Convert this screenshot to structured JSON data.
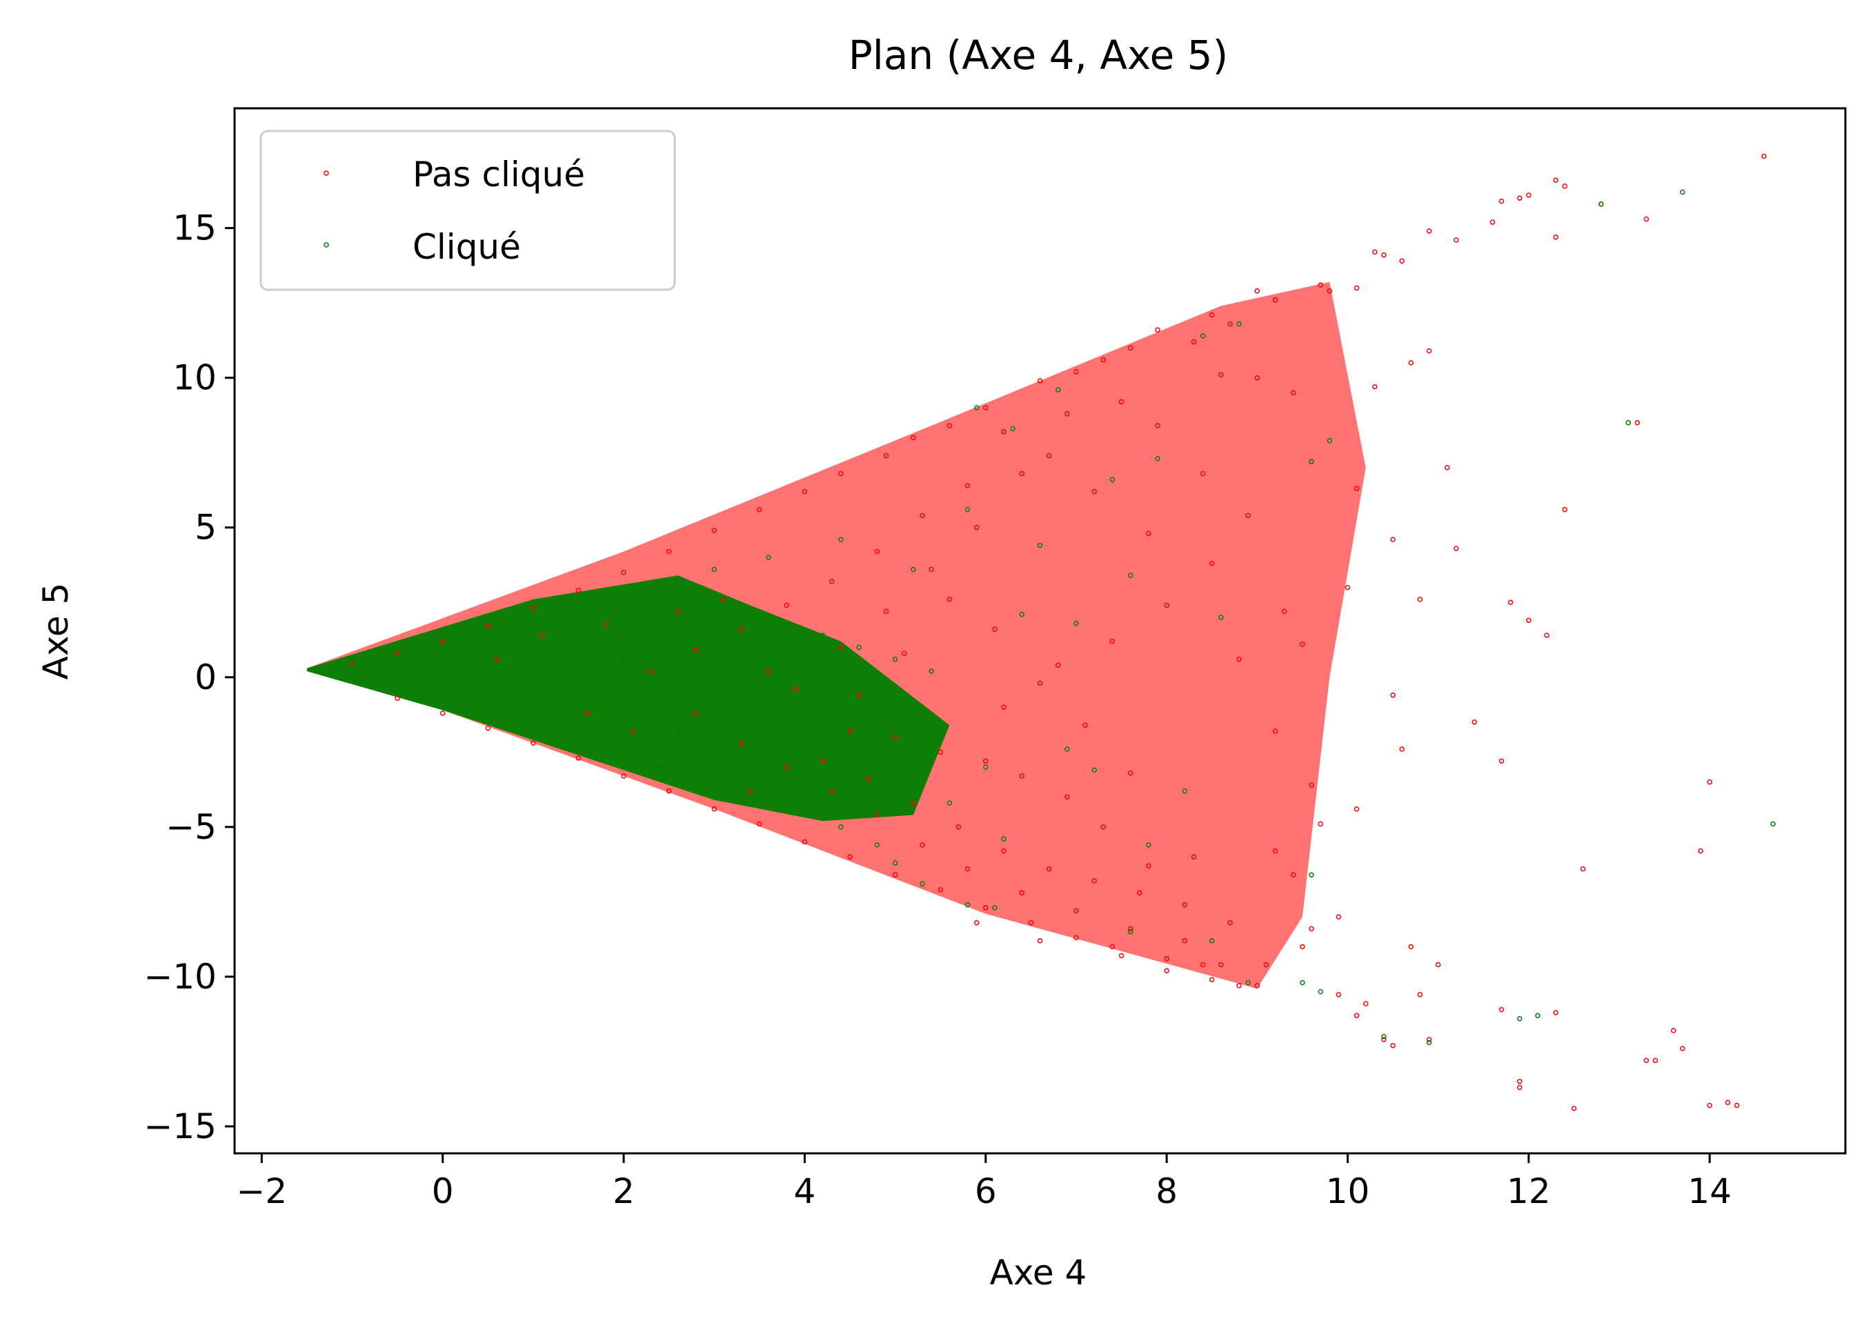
{
  "chart_data": {
    "type": "scatter",
    "title": "Plan (Axe 4, Axe 5)",
    "xlabel": "Axe 4",
    "ylabel": "Axe 5",
    "xlim": [
      -2.3,
      15.5
    ],
    "ylim": [
      -15.9,
      19.0
    ],
    "x_ticks": [
      -2,
      0,
      2,
      4,
      6,
      8,
      10,
      12,
      14
    ],
    "x_tick_labels": [
      "−2",
      "0",
      "2",
      "4",
      "6",
      "8",
      "10",
      "12",
      "14"
    ],
    "y_ticks": [
      -15,
      -10,
      -5,
      0,
      5,
      10,
      15
    ],
    "y_tick_labels": [
      "−15",
      "−10",
      "−5",
      "0",
      "5",
      "10",
      "15"
    ],
    "grid": false,
    "legend": {
      "position": "upper-left"
    },
    "series": [
      {
        "name": "Pas cliqué",
        "color": "#ff0000",
        "points": [
          [
            14.6,
            17.4
          ],
          [
            12.3,
            16.6
          ],
          [
            12.4,
            16.4
          ],
          [
            11.9,
            16.0
          ],
          [
            12.0,
            16.1
          ],
          [
            11.7,
            15.9
          ],
          [
            11.6,
            15.2
          ],
          [
            12.8,
            15.8
          ],
          [
            13.3,
            15.3
          ],
          [
            12.3,
            14.7
          ],
          [
            11.2,
            14.6
          ],
          [
            10.3,
            14.2
          ],
          [
            10.4,
            14.1
          ],
          [
            10.6,
            13.9
          ],
          [
            10.9,
            14.9
          ],
          [
            9.7,
            13.1
          ],
          [
            9.8,
            12.9
          ],
          [
            10.1,
            13.0
          ],
          [
            9.2,
            12.6
          ],
          [
            8.7,
            11.8
          ],
          [
            8.5,
            12.1
          ],
          [
            9.0,
            12.9
          ],
          [
            10.3,
            9.7
          ],
          [
            10.7,
            10.5
          ],
          [
            10.9,
            10.9
          ],
          [
            11.1,
            7.0
          ],
          [
            12.4,
            5.6
          ],
          [
            13.2,
            8.5
          ],
          [
            11.2,
            4.3
          ],
          [
            10.5,
            4.6
          ],
          [
            11.8,
            2.5
          ],
          [
            12.0,
            1.9
          ],
          [
            12.2,
            1.4
          ],
          [
            11.7,
            -2.8
          ],
          [
            12.6,
            -6.4
          ],
          [
            13.9,
            -5.8
          ],
          [
            14.0,
            -3.5
          ],
          [
            13.6,
            -11.8
          ],
          [
            13.7,
            -12.4
          ],
          [
            13.3,
            -12.8
          ],
          [
            13.4,
            -12.8
          ],
          [
            11.9,
            -13.5
          ],
          [
            11.9,
            -13.7
          ],
          [
            12.5,
            -14.4
          ],
          [
            14.0,
            -14.3
          ],
          [
            14.3,
            -14.3
          ],
          [
            14.2,
            -14.2
          ],
          [
            12.3,
            -11.2
          ],
          [
            11.7,
            -11.1
          ],
          [
            10.4,
            -12.1
          ],
          [
            10.5,
            -12.3
          ],
          [
            10.9,
            -12.1
          ],
          [
            10.2,
            -10.9
          ],
          [
            10.1,
            -11.3
          ],
          [
            9.9,
            -10.6
          ],
          [
            9.5,
            -9.0
          ],
          [
            9.9,
            -8.0
          ],
          [
            10.7,
            -9.0
          ],
          [
            11.0,
            -9.6
          ],
          [
            10.8,
            -10.6
          ],
          [
            9.4,
            -6.6
          ],
          [
            9.7,
            -4.9
          ],
          [
            10.1,
            -4.4
          ],
          [
            10.6,
            -2.4
          ],
          [
            11.4,
            -1.5
          ],
          [
            10.5,
            -0.6
          ],
          [
            9.5,
            1.1
          ],
          [
            10.0,
            3.0
          ],
          [
            10.8,
            2.6
          ],
          [
            10.1,
            6.3
          ],
          [
            9.6,
            7.2
          ],
          [
            9.4,
            9.5
          ],
          [
            9.0,
            10.0
          ],
          [
            8.6,
            10.1
          ],
          [
            8.3,
            11.2
          ],
          [
            7.9,
            11.6
          ],
          [
            7.6,
            11.0
          ],
          [
            7.3,
            10.6
          ],
          [
            7.0,
            10.2
          ],
          [
            6.6,
            9.9
          ],
          [
            6.0,
            9.0
          ],
          [
            5.6,
            8.4
          ],
          [
            5.2,
            8.0
          ],
          [
            4.9,
            7.4
          ],
          [
            4.4,
            6.8
          ],
          [
            4.0,
            6.2
          ],
          [
            3.5,
            5.6
          ],
          [
            3.0,
            4.9
          ],
          [
            2.5,
            4.2
          ],
          [
            2.0,
            3.5
          ],
          [
            1.5,
            2.9
          ],
          [
            1.0,
            2.3
          ],
          [
            0.5,
            1.7
          ],
          [
            0.0,
            1.2
          ],
          [
            -0.5,
            0.8
          ],
          [
            -1.0,
            0.5
          ],
          [
            -1.4,
            0.3
          ],
          [
            -0.5,
            -0.7
          ],
          [
            0.0,
            -1.2
          ],
          [
            0.5,
            -1.7
          ],
          [
            1.0,
            -2.2
          ],
          [
            1.5,
            -2.7
          ],
          [
            2.0,
            -3.3
          ],
          [
            2.5,
            -3.8
          ],
          [
            3.0,
            -4.4
          ],
          [
            3.5,
            -4.9
          ],
          [
            4.0,
            -5.5
          ],
          [
            4.5,
            -6.0
          ],
          [
            5.0,
            -6.6
          ],
          [
            5.5,
            -7.1
          ],
          [
            6.0,
            -7.7
          ],
          [
            6.5,
            -8.2
          ],
          [
            7.0,
            -8.7
          ],
          [
            7.5,
            -9.3
          ],
          [
            8.0,
            -9.8
          ],
          [
            8.5,
            -10.1
          ],
          [
            9.0,
            -10.3
          ],
          [
            8.8,
            -10.3
          ],
          [
            8.6,
            -9.6
          ],
          [
            8.2,
            -7.6
          ],
          [
            7.8,
            -6.3
          ],
          [
            7.3,
            -5.0
          ],
          [
            6.9,
            -4.0
          ],
          [
            6.4,
            -3.3
          ],
          [
            6.0,
            -2.8
          ],
          [
            5.5,
            -2.5
          ],
          [
            5.0,
            -2.0
          ],
          [
            4.5,
            -1.8
          ],
          [
            6.2,
            -1.0
          ],
          [
            6.8,
            0.4
          ],
          [
            7.4,
            1.2
          ],
          [
            8.0,
            2.4
          ],
          [
            8.5,
            3.8
          ],
          [
            7.8,
            4.8
          ],
          [
            7.2,
            6.2
          ],
          [
            6.7,
            7.4
          ],
          [
            6.2,
            8.2
          ],
          [
            5.8,
            6.4
          ],
          [
            5.3,
            5.4
          ],
          [
            4.8,
            4.2
          ],
          [
            4.3,
            3.2
          ],
          [
            3.8,
            2.4
          ],
          [
            3.3,
            1.6
          ],
          [
            2.8,
            0.9
          ],
          [
            2.3,
            0.2
          ],
          [
            2.8,
            -1.2
          ],
          [
            3.3,
            -2.2
          ],
          [
            3.8,
            -3.0
          ],
          [
            4.3,
            -3.8
          ],
          [
            4.8,
            -4.6
          ],
          [
            5.3,
            -5.6
          ],
          [
            5.8,
            -6.4
          ],
          [
            6.4,
            -7.2
          ],
          [
            7.0,
            -7.8
          ],
          [
            7.6,
            -8.4
          ],
          [
            8.2,
            -8.8
          ],
          [
            8.7,
            -8.2
          ],
          [
            9.2,
            -5.8
          ],
          [
            9.6,
            -3.6
          ],
          [
            9.2,
            -1.8
          ],
          [
            8.8,
            0.6
          ],
          [
            9.3,
            2.2
          ],
          [
            8.9,
            5.4
          ],
          [
            8.4,
            6.8
          ],
          [
            7.9,
            8.4
          ],
          [
            7.5,
            9.2
          ],
          [
            6.9,
            8.8
          ],
          [
            6.4,
            6.8
          ],
          [
            5.9,
            5.0
          ],
          [
            5.4,
            3.6
          ],
          [
            4.9,
            2.2
          ],
          [
            4.4,
            1.0
          ],
          [
            3.9,
            -0.4
          ],
          [
            4.2,
            -2.8
          ],
          [
            4.7,
            -3.4
          ],
          [
            5.2,
            -4.2
          ],
          [
            5.7,
            -5.0
          ],
          [
            6.2,
            -5.8
          ],
          [
            6.7,
            -6.4
          ],
          [
            7.2,
            -6.8
          ],
          [
            7.7,
            -7.2
          ],
          [
            8.3,
            -6.0
          ],
          [
            7.6,
            -3.2
          ],
          [
            7.1,
            -1.6
          ],
          [
            6.6,
            -0.2
          ],
          [
            6.1,
            1.6
          ],
          [
            5.6,
            2.6
          ],
          [
            5.1,
            0.8
          ],
          [
            4.6,
            -0.6
          ],
          [
            3.6,
            0.2
          ],
          [
            3.1,
            2.6
          ],
          [
            2.6,
            2.2
          ],
          [
            2.1,
            -1.8
          ],
          [
            1.6,
            -1.2
          ],
          [
            1.1,
            1.4
          ],
          [
            0.6,
            0.6
          ],
          [
            1.8,
            1.8
          ],
          [
            3.4,
            -3.8
          ],
          [
            5.9,
            -8.2
          ],
          [
            6.6,
            -8.8
          ],
          [
            7.4,
            -9.0
          ],
          [
            8.0,
            -9.4
          ],
          [
            8.4,
            -9.6
          ],
          [
            9.1,
            -9.6
          ],
          [
            9.6,
            -8.4
          ]
        ]
      },
      {
        "name": "Cliqué",
        "color": "#008000",
        "points": [
          [
            13.7,
            16.2
          ],
          [
            12.8,
            15.8
          ],
          [
            13.1,
            8.5
          ],
          [
            14.7,
            -4.9
          ],
          [
            11.9,
            -11.4
          ],
          [
            12.1,
            -11.3
          ],
          [
            10.9,
            -12.2
          ],
          [
            10.4,
            -12.0
          ],
          [
            9.7,
            -10.5
          ],
          [
            9.5,
            -10.2
          ],
          [
            8.9,
            -10.2
          ],
          [
            9.6,
            -6.6
          ],
          [
            9.8,
            7.9
          ],
          [
            9.6,
            7.2
          ],
          [
            8.8,
            11.8
          ],
          [
            8.4,
            11.4
          ],
          [
            7.9,
            7.3
          ],
          [
            7.4,
            6.6
          ],
          [
            6.8,
            9.6
          ],
          [
            6.3,
            8.3
          ],
          [
            5.9,
            9.0
          ],
          [
            6.4,
            2.1
          ],
          [
            6.9,
            -2.4
          ],
          [
            7.2,
            -3.1
          ],
          [
            7.6,
            -8.5
          ],
          [
            8.5,
            -8.8
          ],
          [
            6.1,
            -7.7
          ],
          [
            5.8,
            -7.6
          ],
          [
            5.3,
            -6.9
          ],
          [
            4.8,
            -5.6
          ],
          [
            4.6,
            -4.6
          ],
          [
            4.2,
            -4.0
          ],
          [
            3.8,
            -3.6
          ],
          [
            3.4,
            -2.8
          ],
          [
            3.0,
            -2.2
          ],
          [
            2.6,
            -1.8
          ],
          [
            2.2,
            -1.6
          ],
          [
            1.8,
            -1.2
          ],
          [
            1.4,
            -0.8
          ],
          [
            1.0,
            -0.4
          ],
          [
            0.6,
            -0.2
          ],
          [
            0.2,
            0.0
          ],
          [
            -0.2,
            0.2
          ],
          [
            -0.6,
            0.3
          ],
          [
            -1.0,
            0.3
          ],
          [
            -1.4,
            0.3
          ],
          [
            -1.0,
            0.6
          ],
          [
            -0.6,
            0.8
          ],
          [
            -0.2,
            1.0
          ],
          [
            0.2,
            1.3
          ],
          [
            0.6,
            1.6
          ],
          [
            1.0,
            1.8
          ],
          [
            1.4,
            2.1
          ],
          [
            1.8,
            2.3
          ],
          [
            2.2,
            2.5
          ],
          [
            2.6,
            2.6
          ],
          [
            3.0,
            2.4
          ],
          [
            3.4,
            2.0
          ],
          [
            3.8,
            1.8
          ],
          [
            4.2,
            1.4
          ],
          [
            4.6,
            1.0
          ],
          [
            5.0,
            0.6
          ],
          [
            5.4,
            0.2
          ],
          [
            4.8,
            -1.6
          ],
          [
            4.4,
            -2.4
          ],
          [
            4.0,
            -2.2
          ],
          [
            3.6,
            -1.4
          ],
          [
            3.2,
            -0.6
          ],
          [
            2.8,
            0.0
          ],
          [
            2.4,
            0.4
          ],
          [
            2.0,
            0.6
          ],
          [
            1.6,
            0.8
          ],
          [
            1.2,
            0.6
          ],
          [
            0.8,
            0.4
          ],
          [
            0.4,
            0.2
          ],
          [
            0.0,
            -0.6
          ],
          [
            0.4,
            -1.0
          ],
          [
            0.8,
            -1.4
          ],
          [
            1.2,
            -1.8
          ],
          [
            1.6,
            -2.2
          ],
          [
            2.0,
            -2.6
          ],
          [
            2.4,
            -3.0
          ],
          [
            2.8,
            -3.2
          ],
          [
            3.2,
            -3.4
          ],
          [
            4.4,
            -5.0
          ],
          [
            5.0,
            -6.2
          ],
          [
            5.6,
            -4.2
          ],
          [
            6.0,
            -3.0
          ],
          [
            5.2,
            3.6
          ],
          [
            4.4,
            4.6
          ],
          [
            3.6,
            4.0
          ],
          [
            3.0,
            3.6
          ],
          [
            5.8,
            5.6
          ],
          [
            6.6,
            4.4
          ],
          [
            7.0,
            1.8
          ],
          [
            6.2,
            -5.4
          ],
          [
            7.8,
            -5.6
          ],
          [
            8.2,
            -3.8
          ],
          [
            8.6,
            2.0
          ],
          [
            7.6,
            3.4
          ]
        ]
      }
    ]
  }
}
